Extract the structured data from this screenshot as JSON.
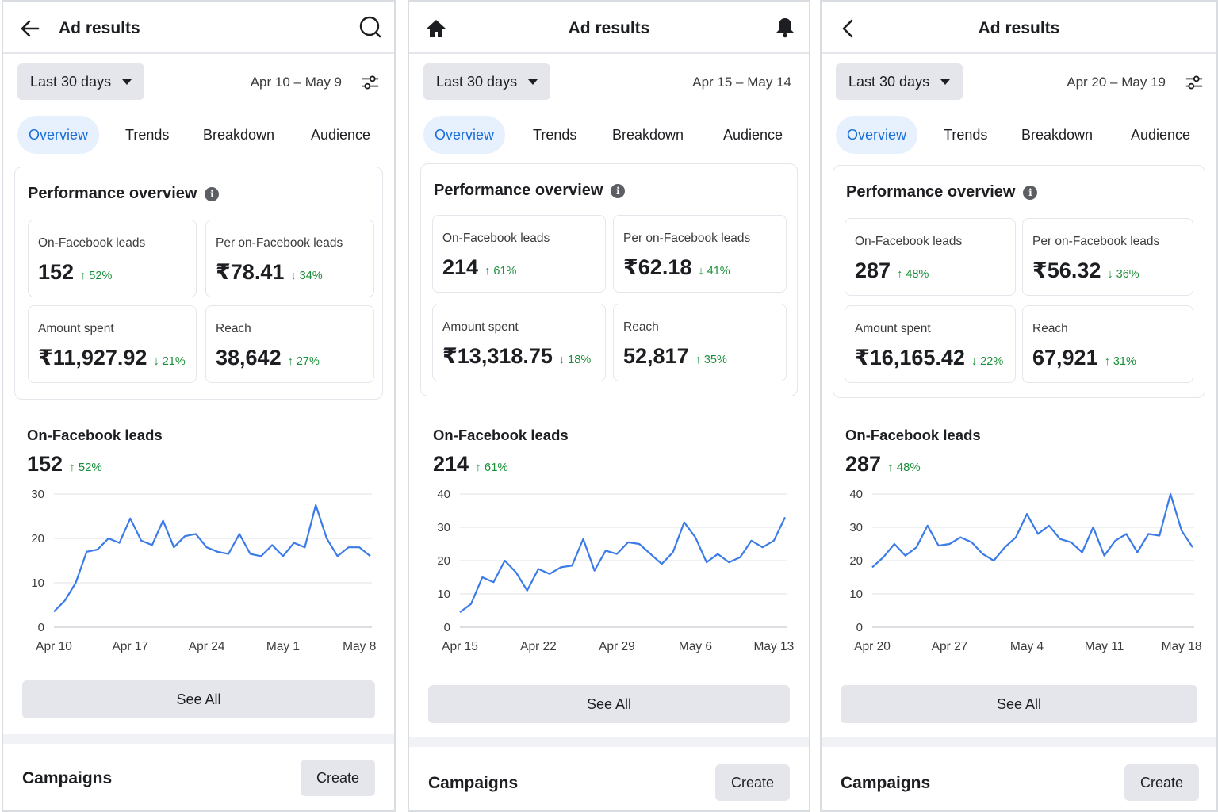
{
  "panels": [
    {
      "header": {
        "title": "Ad results",
        "left_icon": "back-arrow-icon",
        "right_icon": "search-icon"
      },
      "date_filter": {
        "label": "Last 30 days",
        "range": "Apr 10 – May 9"
      },
      "tabs": [
        {
          "label": "Overview"
        },
        {
          "label": "Trends"
        },
        {
          "label": "Breakdown"
        },
        {
          "label": "Audience"
        }
      ],
      "performance": {
        "title": "Performance overview",
        "metrics": [
          {
            "label": "On-Facebook leads",
            "value": "152",
            "delta": "↑ 52%"
          },
          {
            "label": "Per on-Facebook leads",
            "value": "₹78.41",
            "delta": "↓ 34%"
          },
          {
            "label": "Amount spent",
            "value": "₹11,927.92",
            "delta": "↓ 21%"
          },
          {
            "label": "Reach",
            "value": "38,642",
            "delta": "↑ 27%"
          }
        ]
      },
      "chart_card": {
        "title": "On-Facebook leads",
        "value": "152",
        "delta": "↑ 52%",
        "see_all": "See All"
      },
      "campaigns": {
        "title": "Campaigns",
        "create": "Create"
      }
    },
    {
      "header": {
        "title": "Ad results",
        "left_icon": "home-icon",
        "right_icon": "bell-icon"
      },
      "date_filter": {
        "label": "Last 30 days",
        "range": "Apr 15 – May 14"
      },
      "tabs": [
        {
          "label": "Overview"
        },
        {
          "label": "Trends"
        },
        {
          "label": "Breakdown"
        },
        {
          "label": "Audience"
        }
      ],
      "performance": {
        "title": "Performance overview",
        "metrics": [
          {
            "label": "On-Facebook leads",
            "value": "214",
            "delta": "↑ 61%"
          },
          {
            "label": "Per on-Facebook leads",
            "value": "₹62.18",
            "delta": "↓ 41%"
          },
          {
            "label": "Amount spent",
            "value": "₹13,318.75",
            "delta": "↓ 18%"
          },
          {
            "label": "Reach",
            "value": "52,817",
            "delta": "↑ 35%"
          }
        ]
      },
      "chart_card": {
        "title": "On-Facebook leads",
        "value": "214",
        "delta": "↑ 61%",
        "see_all": "See All"
      },
      "campaigns": {
        "title": "Campaigns",
        "create": "Create"
      }
    },
    {
      "header": {
        "title": "Ad results",
        "left_icon": "chevron-left-icon",
        "right_icon": "filter-icon"
      },
      "date_filter": {
        "label": "Last 30 days",
        "range": "Apr 20 – May 19"
      },
      "tabs": [
        {
          "label": "Overview"
        },
        {
          "label": "Trends"
        },
        {
          "label": "Breakdown"
        },
        {
          "label": "Audience"
        }
      ],
      "performance": {
        "title": "Performance overview",
        "metrics": [
          {
            "label": "On-Facebook leads",
            "value": "287",
            "delta": "↑ 48%"
          },
          {
            "label": "Per on-Facebook leads",
            "value": "₹56.32",
            "delta": "↓ 36%"
          },
          {
            "label": "Amount spent",
            "value": "₹16,165.42",
            "delta": "↓ 22%"
          },
          {
            "label": "Reach",
            "value": "67,921",
            "delta": "↑ 31%"
          }
        ]
      },
      "chart_card": {
        "title": "On-Facebook leads",
        "value": "287",
        "delta": "↑ 48%",
        "see_all": "See All"
      },
      "campaigns": {
        "title": "Campaigns",
        "create": "Create"
      }
    }
  ],
  "colors": {
    "accent": "#1a6ed8",
    "line": "#3b7be8",
    "positive": "#1a8f3a",
    "tab_active_bg": "#e7f0fd",
    "button_bg": "#e4e6eb"
  },
  "chart_data": [
    {
      "type": "line",
      "title": "On-Facebook leads",
      "xlabel": "",
      "ylabel": "",
      "x": [
        "Apr 10",
        "Apr 11",
        "Apr 12",
        "Apr 13",
        "Apr 14",
        "Apr 15",
        "Apr 16",
        "Apr 17",
        "Apr 18",
        "Apr 19",
        "Apr 20",
        "Apr 21",
        "Apr 22",
        "Apr 23",
        "Apr 24",
        "Apr 25",
        "Apr 26",
        "Apr 27",
        "Apr 28",
        "Apr 29",
        "Apr 30",
        "May 1",
        "May 2",
        "May 3",
        "May 4",
        "May 5",
        "May 6",
        "May 7",
        "May 8",
        "May 9"
      ],
      "xticks": [
        "Apr 10",
        "Apr 17",
        "Apr 24",
        "May 1",
        "May 8"
      ],
      "yticks": [
        0,
        10,
        20,
        30
      ],
      "ylim": [
        0,
        30
      ],
      "grid": true,
      "values": [
        3.5,
        6,
        10,
        17,
        17.5,
        20,
        19,
        24.5,
        19.5,
        18.5,
        24,
        18,
        20.5,
        21,
        18,
        17,
        16.5,
        21,
        16.5,
        16,
        18.5,
        16,
        19,
        18,
        27.5,
        20,
        16,
        18,
        18,
        16
      ]
    },
    {
      "type": "line",
      "title": "On-Facebook leads",
      "xlabel": "",
      "ylabel": "",
      "x": [
        "Apr 15",
        "Apr 16",
        "Apr 17",
        "Apr 18",
        "Apr 19",
        "Apr 20",
        "Apr 21",
        "Apr 22",
        "Apr 23",
        "Apr 24",
        "Apr 25",
        "Apr 26",
        "Apr 27",
        "Apr 28",
        "Apr 29",
        "Apr 30",
        "May 1",
        "May 2",
        "May 3",
        "May 4",
        "May 5",
        "May 6",
        "May 7",
        "May 8",
        "May 9",
        "May 10",
        "May 11",
        "May 12",
        "May 13",
        "May 14"
      ],
      "xticks": [
        "Apr 15",
        "Apr 22",
        "Apr 29",
        "May 6",
        "May 13"
      ],
      "yticks": [
        0,
        10,
        20,
        30,
        40
      ],
      "ylim": [
        0,
        40
      ],
      "grid": true,
      "values": [
        4.5,
        7,
        15,
        13.5,
        20,
        16.5,
        11,
        17.5,
        16,
        18,
        18.5,
        26.5,
        17,
        23,
        22,
        25.5,
        25,
        22,
        19,
        22.5,
        31.5,
        27,
        19.5,
        22,
        19.5,
        21,
        26,
        24,
        26,
        33
      ]
    },
    {
      "type": "line",
      "title": "On-Facebook leads",
      "xlabel": "",
      "ylabel": "",
      "x": [
        "Apr 20",
        "Apr 21",
        "Apr 22",
        "Apr 23",
        "Apr 24",
        "Apr 25",
        "Apr 26",
        "Apr 27",
        "Apr 28",
        "Apr 29",
        "Apr 30",
        "May 1",
        "May 2",
        "May 3",
        "May 4",
        "May 5",
        "May 6",
        "May 7",
        "May 8",
        "May 9",
        "May 10",
        "May 11",
        "May 12",
        "May 13",
        "May 14",
        "May 15",
        "May 16",
        "May 17",
        "May 18",
        "May 19"
      ],
      "xticks": [
        "Apr 20",
        "Apr 27",
        "May 4",
        "May 11",
        "May 18"
      ],
      "yticks": [
        0,
        10,
        20,
        30,
        40
      ],
      "ylim": [
        0,
        40
      ],
      "grid": true,
      "values": [
        18,
        21,
        25,
        21.5,
        24,
        30.5,
        24.5,
        25,
        27,
        25.5,
        22,
        20,
        24,
        27,
        34,
        28,
        30.5,
        26.5,
        25.5,
        22.5,
        30,
        21.5,
        26,
        28,
        22.5,
        28,
        27.5,
        40,
        29,
        24
      ]
    }
  ]
}
